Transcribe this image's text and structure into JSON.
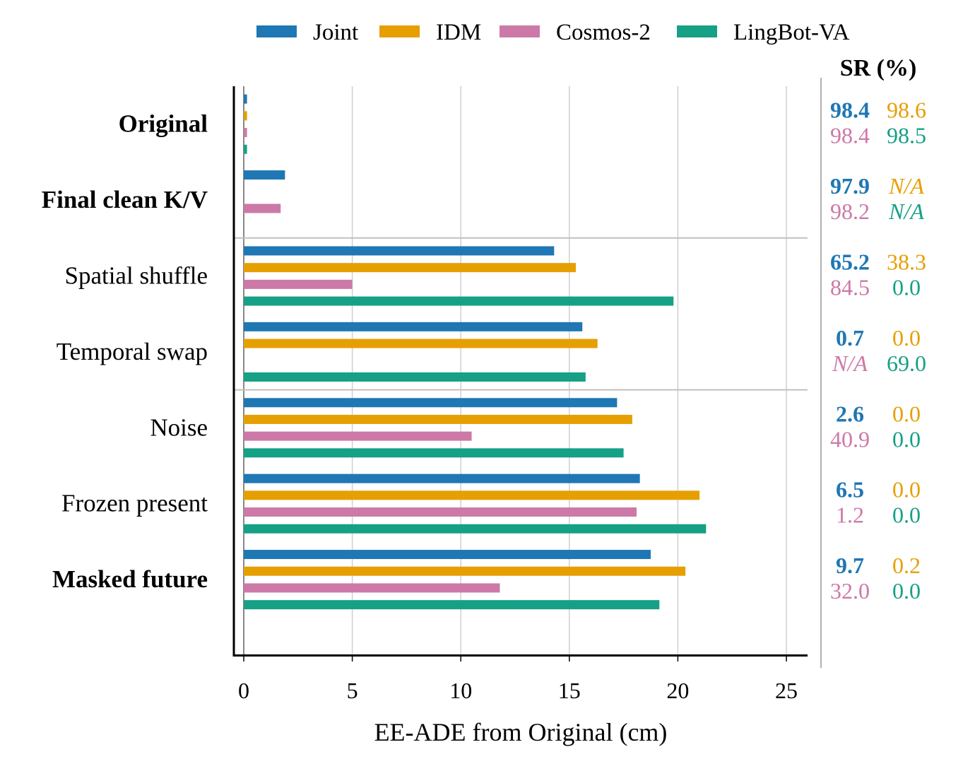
{
  "chart_data": {
    "type": "bar",
    "orientation": "horizontal",
    "xlabel": "EE-ADE from Original (cm)",
    "xlim": [
      0,
      26
    ],
    "xticks": [
      0,
      5,
      10,
      15,
      20,
      25
    ],
    "grid": true,
    "legend_position": "top",
    "categories": [
      "Original",
      "Final clean K/V",
      "Spatial shuffle",
      "Temporal swap",
      "Noise",
      "Frozen present",
      "Masked future"
    ],
    "bold_categories": [
      "Original",
      "Final clean K/V",
      "Masked future"
    ],
    "group_separators_after": [
      "Final clean K/V",
      "Temporal swap"
    ],
    "series": [
      {
        "name": "Joint",
        "color": "#1f77b4",
        "values": [
          0.15,
          1.9,
          14.3,
          15.6,
          17.2,
          18.25,
          18.75
        ]
      },
      {
        "name": "IDM",
        "color": "#e69f00",
        "values": [
          0.15,
          null,
          15.3,
          16.3,
          17.9,
          21.0,
          20.35
        ]
      },
      {
        "name": "Cosmos-2",
        "color": "#cc79a7",
        "values": [
          0.15,
          1.7,
          5.0,
          null,
          10.5,
          18.1,
          11.8
        ]
      },
      {
        "name": "LingBot-VA",
        "color": "#16a085",
        "values": [
          0.15,
          null,
          19.8,
          15.75,
          17.5,
          21.3,
          19.15
        ]
      }
    ],
    "sr_table": {
      "title": "SR (%)",
      "rows": [
        [
          "98.4",
          "98.6",
          "98.4",
          "98.5"
        ],
        [
          "97.9",
          "N/A",
          "98.2",
          "N/A"
        ],
        [
          "65.2",
          "38.3",
          "84.5",
          "0.0"
        ],
        [
          "0.7",
          "0.0",
          "N/A",
          "69.0"
        ],
        [
          "2.6",
          "0.0",
          "40.9",
          "0.0"
        ],
        [
          "6.5",
          "0.0",
          "1.2",
          "0.0"
        ],
        [
          "9.7",
          "0.2",
          "32.0",
          "0.0"
        ]
      ]
    }
  }
}
